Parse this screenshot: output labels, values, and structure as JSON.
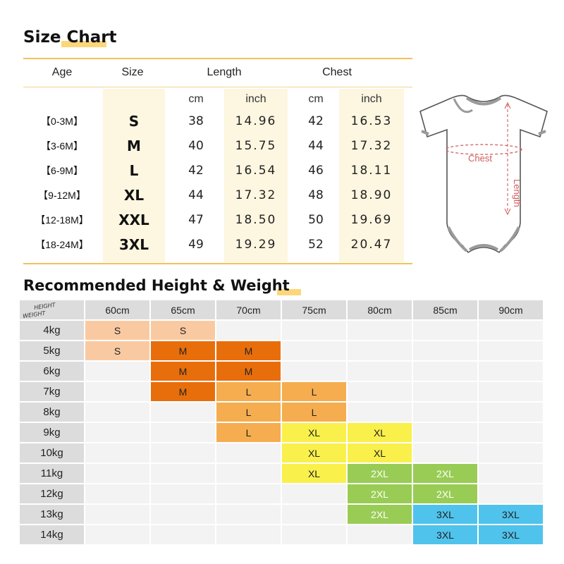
{
  "size_chart": {
    "title": "Size Chart",
    "headers": {
      "age": "Age",
      "size": "Size",
      "length": "Length",
      "chest": "Chest"
    },
    "units": [
      "cm",
      "inch",
      "cm",
      "inch"
    ],
    "rows": [
      {
        "age": "【0-3M】",
        "size": "S",
        "length_cm": "38",
        "length_inch": "14.96",
        "chest_cm": "42",
        "chest_inch": "16.53"
      },
      {
        "age": "【3-6M】",
        "size": "M",
        "length_cm": "40",
        "length_inch": "15.75",
        "chest_cm": "44",
        "chest_inch": "17.32"
      },
      {
        "age": "【6-9M】",
        "size": "L",
        "length_cm": "42",
        "length_inch": "16.54",
        "chest_cm": "46",
        "chest_inch": "18.11"
      },
      {
        "age": "【9-12M】",
        "size": "XL",
        "length_cm": "44",
        "length_inch": "17.32",
        "chest_cm": "48",
        "chest_inch": "18.90"
      },
      {
        "age": "【12-18M】",
        "size": "XXL",
        "length_cm": "47",
        "length_inch": "18.50",
        "chest_cm": "50",
        "chest_inch": "19.69"
      },
      {
        "age": "【18-24M】",
        "size": "3XL",
        "length_cm": "49",
        "length_inch": "19.29",
        "chest_cm": "52",
        "chest_inch": "20.47"
      }
    ]
  },
  "diagram": {
    "chest_label": "Chest",
    "length_label": "Length"
  },
  "recommend": {
    "title": "Recommended Height & Weight",
    "corner_height": "HEIGHT",
    "corner_weight": "WEIGHT",
    "heights": [
      "60cm",
      "65cm",
      "70cm",
      "75cm",
      "80cm",
      "85cm",
      "90cm"
    ],
    "rows": [
      {
        "weight": "4kg",
        "cells": [
          "S",
          "S",
          "",
          "",
          "",
          "",
          ""
        ]
      },
      {
        "weight": "5kg",
        "cells": [
          "S",
          "M",
          "M",
          "",
          "",
          "",
          ""
        ]
      },
      {
        "weight": "6kg",
        "cells": [
          "",
          "M",
          "M",
          "",
          "",
          "",
          ""
        ]
      },
      {
        "weight": "7kg",
        "cells": [
          "",
          "M",
          "L",
          "L",
          "",
          "",
          ""
        ]
      },
      {
        "weight": "8kg",
        "cells": [
          "",
          "",
          "L",
          "L",
          "",
          "",
          ""
        ]
      },
      {
        "weight": "9kg",
        "cells": [
          "",
          "",
          "L",
          "XL",
          "XL",
          "",
          ""
        ]
      },
      {
        "weight": "10kg",
        "cells": [
          "",
          "",
          "",
          "XL",
          "XL",
          "",
          ""
        ]
      },
      {
        "weight": "11kg",
        "cells": [
          "",
          "",
          "",
          "XL",
          "2XL",
          "2XL",
          ""
        ]
      },
      {
        "weight": "12kg",
        "cells": [
          "",
          "",
          "",
          "",
          "2XL",
          "2XL",
          ""
        ]
      },
      {
        "weight": "13kg",
        "cells": [
          "",
          "",
          "",
          "",
          "2XL",
          "3XL",
          "3XL"
        ]
      },
      {
        "weight": "14kg",
        "cells": [
          "",
          "",
          "",
          "",
          "",
          "3XL",
          "3XL"
        ]
      }
    ]
  },
  "colors": {
    "S": "#f9caa2",
    "M": "#e86e0c",
    "L": "#f5ad4f",
    "XL": "#f9f04c",
    "2XL": "#99cc55",
    "3XL": "#4fc3ec",
    "accent_line": "#f1c15a",
    "grid_header": "#dcdcdc",
    "grid_empty": "#f3f3f3"
  }
}
